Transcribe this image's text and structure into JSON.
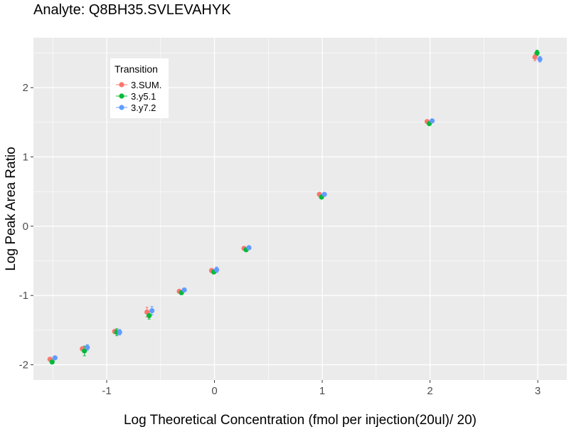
{
  "chart_data": {
    "type": "scatter",
    "title": "Analyte: Q8BH35.SVLEVAHYK",
    "xlabel": "Log Theoretical Concentration (fmol per injection(20ul)/ 20)",
    "ylabel": "Log Peak Area Ratio",
    "xlim": [
      -1.68,
      3.27
    ],
    "ylim": [
      -2.22,
      2.72
    ],
    "x_ticks": [
      -1,
      0,
      1,
      2,
      3
    ],
    "y_ticks": [
      -2,
      -1,
      0,
      1,
      2
    ],
    "x_tick_labels": [
      "-1",
      "0",
      "1",
      "2",
      "3"
    ],
    "y_tick_labels": [
      "-2",
      "-1",
      "0",
      "1",
      "2"
    ],
    "grid": true,
    "legend": {
      "title": "Transition",
      "placement": "top-left inside"
    },
    "x": [
      -1.5,
      -1.2,
      -0.9,
      -0.6,
      -0.3,
      0,
      0.3,
      1,
      2,
      3
    ],
    "series": [
      {
        "name": "3.SUM.",
        "color": "#F8766D",
        "y": [
          -1.92,
          -1.77,
          -1.52,
          -1.24,
          -0.94,
          -0.64,
          -0.32,
          0.46,
          1.51,
          2.44
        ],
        "err": [
          0.02,
          0.03,
          0.03,
          0.07,
          0.02,
          0.03,
          0.02,
          0.02,
          0.02,
          0.05
        ]
      },
      {
        "name": "3.y5.1",
        "color": "#00BA38",
        "y": [
          -1.96,
          -1.8,
          -1.53,
          -1.29,
          -0.96,
          -0.66,
          -0.34,
          0.42,
          1.48,
          2.5
        ],
        "err": [
          0.02,
          0.07,
          0.05,
          0.05,
          0.02,
          0.03,
          0.02,
          0.02,
          0.02,
          0.04
        ]
      },
      {
        "name": "3.y7.2",
        "color": "#619CFF",
        "y": [
          -1.9,
          -1.75,
          -1.53,
          -1.22,
          -0.92,
          -0.63,
          -0.31,
          0.46,
          1.52,
          2.41
        ],
        "err": [
          0.02,
          0.04,
          0.04,
          0.06,
          0.02,
          0.04,
          0.02,
          0.02,
          0.02,
          0.04
        ]
      }
    ]
  },
  "colors": {
    "panel_background": "#EBEBEB",
    "grid_major": "#FFFFFF"
  }
}
